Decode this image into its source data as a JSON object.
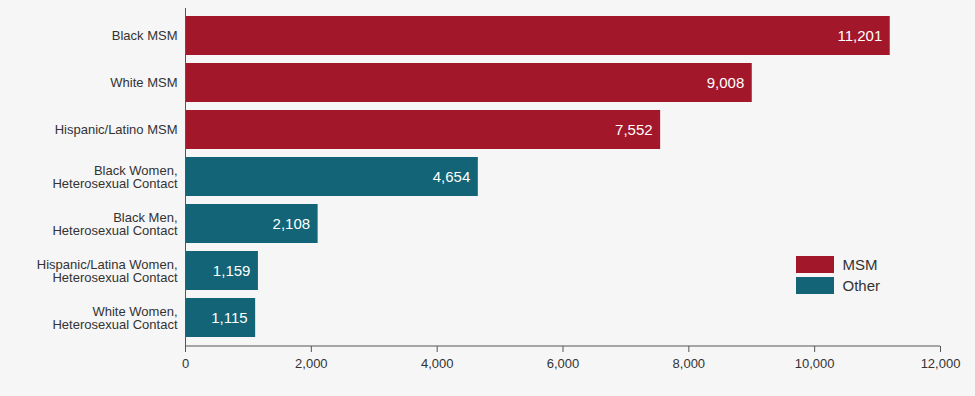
{
  "chart_data": {
    "type": "bar",
    "orientation": "horizontal",
    "categories": [
      "Black MSM",
      "White MSM",
      "Hispanic/Latino MSM",
      "Black Women, Heterosexual Contact",
      "Black Men, Heterosexual Contact",
      "Hispanic/Latina Women, Heterosexual Contact",
      "White Women, Heterosexual Contact"
    ],
    "series": [
      {
        "name": "MSM",
        "color": "#a3172a",
        "values": [
          11201,
          9008,
          7552,
          null,
          null,
          null,
          null
        ],
        "value_labels": [
          "11,201",
          "9,008",
          "7,552",
          null,
          null,
          null,
          null
        ]
      },
      {
        "name": "Other",
        "color": "#126476",
        "values": [
          null,
          null,
          null,
          4654,
          2108,
          1159,
          1115
        ],
        "value_labels": [
          null,
          null,
          null,
          "4,654",
          "2,108",
          "1,159",
          "1,115"
        ]
      }
    ],
    "xlim": [
      0,
      12000
    ],
    "xticks": [
      0,
      {
        "value": 2000,
        "label": "2,000"
      },
      {
        "value": 4000,
        "label": "4,000"
      },
      {
        "value": 6000,
        "label": "6,000"
      },
      {
        "value": 8000,
        "label": "8,000"
      },
      {
        "value": 10000,
        "label": "10,000"
      },
      {
        "value": 12000,
        "label": "12,000"
      }
    ],
    "data_labels": true,
    "legend": "lower right",
    "grid": false
  }
}
